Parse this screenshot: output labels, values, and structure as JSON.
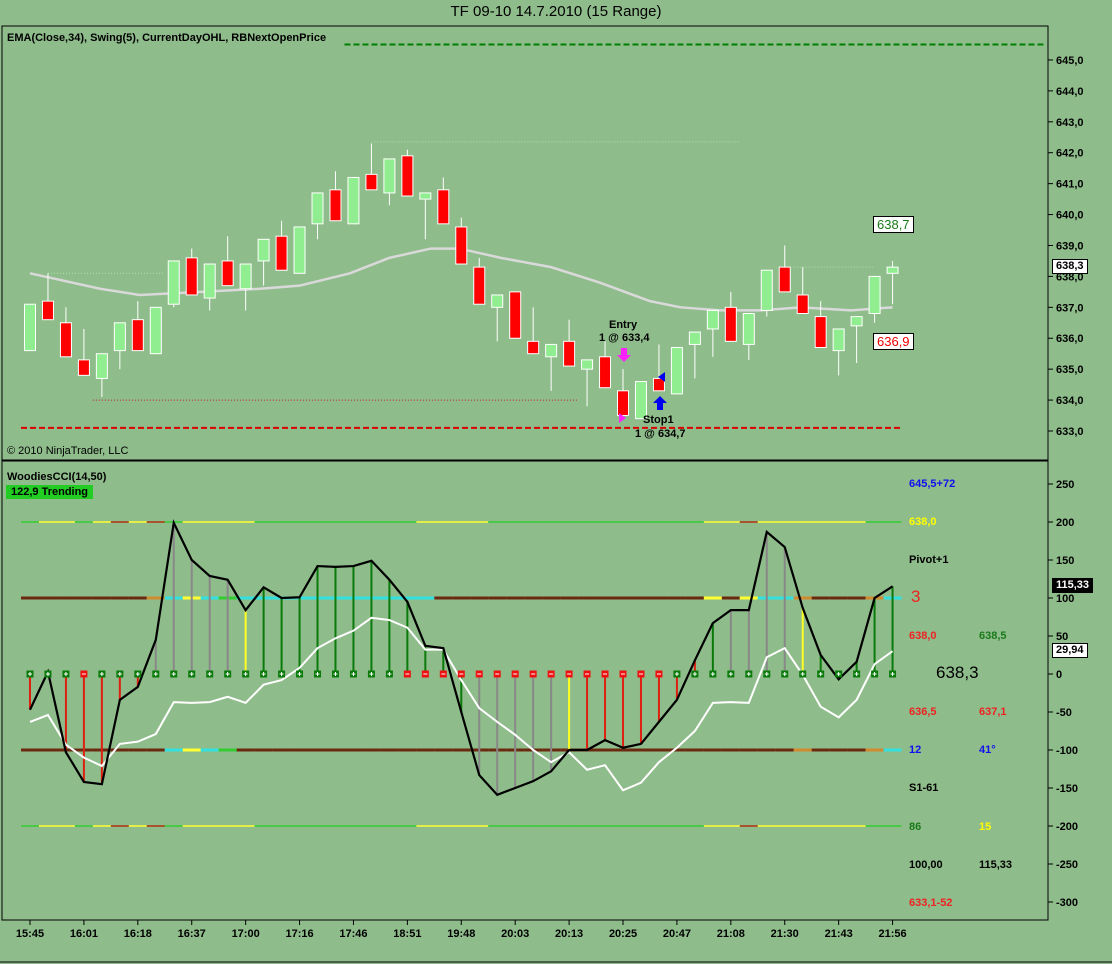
{
  "window": {
    "title": "TF 09-10  14.7.2010 (15 Range)"
  },
  "price_panel": {
    "indicator_label": "EMA(Close,34), Swing(5), CurrentDayOHL, RBNextOpenPrice",
    "copyright": "© 2010 NinjaTrader, LLC",
    "last_price_flag": "638,3",
    "swing_high_box": "638,7",
    "swing_low_box": "636,9",
    "entry": {
      "label": "Entry",
      "detail": "1 @ 633,4"
    },
    "stop": {
      "label": "Stop1",
      "detail": "1 @ 634,7"
    }
  },
  "cci_panel": {
    "indicator_label": "WoodiesCCI(14,50)",
    "status_badge": "122,9 Trending",
    "cci_flag": "115,33",
    "turbo_flag": "29,94",
    "info": {
      "r1": "645,5+72",
      "r2": "638,0",
      "r3": "Pivot+1",
      "r4": "3",
      "r5a": "638,0",
      "r5b": "638,5",
      "r6": "638,3",
      "r7a": "636,5",
      "r7b": "637,1",
      "r8a": "12",
      "r8b": "41°",
      "r9": "S1-61",
      "r10a": "86",
      "r10b": "15",
      "r11a": "100,00",
      "r11b": "115,33",
      "r12": "633,1-52"
    }
  },
  "colors": {
    "background": "#8fbc8b",
    "up": "#90ee90",
    "down": "#ff0000",
    "ema": "#d9d9d9",
    "cci": "#000000",
    "turbo": "#ffffff"
  },
  "chart_data": [
    {
      "type": "candlestick",
      "title": "TF 09-10 14.7.2010 (15 Range)",
      "ylim": [
        632.6,
        645.9
      ],
      "y_ticks": [
        633,
        634,
        635,
        636,
        637,
        638,
        639,
        640,
        641,
        642,
        643,
        644,
        645
      ],
      "y_tick_labels": [
        "633,0",
        "634,0",
        "635,0",
        "636,0",
        "637,0",
        "638,0",
        "639,0",
        "640,0",
        "641,0",
        "642,0",
        "643,0",
        "644,0",
        "645,0"
      ],
      "x_tick_bars": [
        0,
        3,
        6,
        9,
        12,
        15,
        18,
        21,
        24,
        27,
        30,
        33,
        36,
        39,
        42,
        45,
        48
      ],
      "x_tick_labels": [
        "15:45",
        "16:01",
        "16:18",
        "16:37",
        "17:00",
        "17:16",
        "17:46",
        "18:51",
        "19:48",
        "20:03",
        "20:13",
        "20:25",
        "20:47",
        "21:08",
        "21:30",
        "21:43",
        "21:56"
      ],
      "ohlc": [
        [
          635.6,
          637.1,
          635.6,
          637.1
        ],
        [
          637.2,
          638.1,
          636.6,
          636.6
        ],
        [
          636.5,
          637.0,
          635.4,
          635.4
        ],
        [
          635.3,
          636.3,
          634.8,
          634.8
        ],
        [
          634.7,
          635.5,
          634.1,
          635.5
        ],
        [
          635.6,
          636.5,
          635.0,
          636.5
        ],
        [
          636.6,
          637.2,
          635.6,
          635.6
        ],
        [
          635.5,
          637.0,
          635.5,
          637.0
        ],
        [
          637.1,
          638.5,
          637.0,
          638.5
        ],
        [
          638.6,
          638.9,
          637.4,
          637.4
        ],
        [
          637.3,
          638.4,
          636.9,
          638.4
        ],
        [
          638.5,
          639.3,
          637.7,
          637.7
        ],
        [
          637.6,
          638.4,
          636.9,
          638.4
        ],
        [
          638.5,
          639.2,
          637.7,
          639.2
        ],
        [
          639.3,
          639.8,
          638.2,
          638.2
        ],
        [
          638.1,
          639.6,
          638.1,
          639.6
        ],
        [
          639.7,
          640.7,
          639.2,
          640.7
        ],
        [
          640.8,
          641.4,
          639.8,
          639.8
        ],
        [
          639.7,
          641.2,
          639.7,
          641.2
        ],
        [
          641.3,
          642.3,
          640.8,
          640.8
        ],
        [
          640.7,
          641.8,
          640.3,
          641.8
        ],
        [
          641.9,
          642.1,
          640.6,
          640.6
        ],
        [
          640.5,
          640.7,
          639.2,
          640.7
        ],
        [
          640.8,
          641.2,
          639.7,
          639.7
        ],
        [
          639.6,
          639.9,
          638.4,
          638.4
        ],
        [
          638.3,
          638.6,
          637.1,
          637.1
        ],
        [
          637.0,
          637.4,
          635.9,
          637.4
        ],
        [
          637.5,
          637.5,
          636.0,
          636.0
        ],
        [
          635.9,
          637.0,
          635.5,
          635.5
        ],
        [
          635.4,
          635.8,
          634.3,
          635.8
        ],
        [
          635.9,
          636.6,
          635.1,
          635.1
        ],
        [
          635.0,
          635.3,
          633.8,
          635.3
        ],
        [
          635.4,
          635.9,
          634.4,
          634.4
        ],
        [
          634.3,
          635.0,
          633.5,
          633.5
        ],
        [
          633.4,
          634.6,
          633.4,
          634.6
        ],
        [
          634.7,
          635.8,
          634.3,
          634.3
        ],
        [
          634.2,
          635.7,
          634.2,
          635.7
        ],
        [
          635.8,
          636.2,
          634.7,
          636.2
        ],
        [
          636.3,
          636.9,
          635.4,
          636.9
        ],
        [
          637.0,
          637.5,
          635.9,
          635.9
        ],
        [
          635.8,
          636.8,
          635.3,
          636.8
        ],
        [
          636.9,
          638.2,
          636.7,
          638.2
        ],
        [
          638.3,
          639.0,
          637.5,
          637.5
        ],
        [
          637.4,
          638.3,
          636.8,
          636.8
        ],
        [
          636.7,
          637.2,
          635.7,
          635.7
        ],
        [
          635.6,
          636.3,
          634.8,
          636.3
        ],
        [
          636.4,
          636.7,
          635.2,
          636.7
        ],
        [
          636.8,
          638.0,
          636.5,
          638.0
        ],
        [
          638.1,
          638.5,
          637.1,
          638.3
        ]
      ],
      "ema34": [
        [
          0,
          638.1
        ],
        [
          3.9,
          637.6
        ],
        [
          6.1,
          637.4
        ],
        [
          9.5,
          637.5
        ],
        [
          12.8,
          637.6
        ],
        [
          15,
          637.7
        ],
        [
          17.8,
          638.1
        ],
        [
          20,
          638.6
        ],
        [
          22.3,
          638.9
        ],
        [
          23.9,
          638.9
        ],
        [
          26.2,
          638.6
        ],
        [
          29,
          638.3
        ],
        [
          31.7,
          637.8
        ],
        [
          34.5,
          637.2
        ],
        [
          36.2,
          637.0
        ],
        [
          38.4,
          636.9
        ],
        [
          40.6,
          636.9
        ],
        [
          42.9,
          637.0
        ],
        [
          45.7,
          636.9
        ],
        [
          48,
          637.0
        ]
      ],
      "levels": [
        {
          "name": "current-day-high",
          "value": 645.5,
          "from": 17.5,
          "to": 56.5,
          "color": "#008000",
          "style": "dashed"
        },
        {
          "name": "current-day-low",
          "value": 633.1,
          "from": -0.5,
          "to": 48.5,
          "color": "#dd0000",
          "style": "dashed"
        },
        {
          "name": "swing-high-1",
          "value": 638.1,
          "from": 1,
          "to": 7.5,
          "color": "#a8e8a8",
          "style": "dotted"
        },
        {
          "name": "swing-high-2",
          "value": 642.35,
          "from": 19,
          "to": 39.5,
          "color": "#a8e8a8",
          "style": "dotted"
        },
        {
          "name": "swing-low-1",
          "value": 634.0,
          "from": 3.5,
          "to": 30.5,
          "color": "#c02020",
          "style": "dotted"
        },
        {
          "name": "swing-high-3",
          "value": 638.3,
          "from": 42.5,
          "to": 47,
          "color": "#a8e8a8",
          "style": "dotted"
        }
      ]
    },
    {
      "type": "line",
      "title": "WoodiesCCI(14,50)",
      "ylim": [
        -320,
        270
      ],
      "y_ticks": [
        250,
        200,
        150,
        100,
        50,
        0,
        -50,
        -100,
        -150,
        -200,
        -250,
        -300
      ],
      "y_tick_labels": [
        "250",
        "200",
        "150",
        "100",
        "50",
        "0",
        "-50",
        "-100",
        "-150",
        "-200",
        "-250",
        "-300"
      ],
      "series": [
        {
          "name": "CCI",
          "values": [
            -47,
            3,
            -103,
            -142,
            -145,
            -34,
            -17,
            45,
            199,
            150,
            129,
            124,
            84,
            114,
            100,
            101,
            142,
            141,
            142,
            149,
            124,
            95,
            37,
            34,
            -50,
            -133,
            -159,
            -150,
            -141,
            -128,
            -100,
            -100,
            -87,
            -97,
            -92,
            -63,
            -34,
            18,
            67,
            84,
            84,
            187,
            167,
            87,
            25,
            -7,
            16,
            100,
            115.33
          ]
        },
        {
          "name": "TurboCCI",
          "values": [
            -63,
            -54,
            -93,
            -110,
            -121,
            -92,
            -89,
            -79,
            -37,
            -38,
            -37,
            -30,
            -38,
            -14,
            -8,
            8,
            34,
            47,
            57,
            74,
            71,
            61,
            32,
            32,
            -8,
            -45,
            -63,
            -80,
            -100,
            -116,
            -103,
            -126,
            -120,
            -153,
            -143,
            -116,
            -97,
            -75,
            -38,
            -37,
            -38,
            22,
            34,
            -1,
            -43,
            -57,
            -34,
            13,
            29.94
          ]
        }
      ],
      "histogram_colors": "rrrrrrrnnnnnyggggggggggggnnnnnyrrrrrrrgnnnnyggggg",
      "zero_markers": "+++-+++++++++++++++++---------------+++++++++++++",
      "reference_lines": [
        {
          "value": 200,
          "segments": "gyygyryrgyyyygggggggggyyyyggggggggggggyyryyyyyygg"
        },
        {
          "value": 100,
          "segments": "bbbbbbbocycgcccccccccccbbbbbbbbbbbbbbbybycco bbocc"
        },
        {
          "value": -100,
          "segments": "bbbbbbbbcycgbbbbbbbbbbbbbbbbbbbbbbbbbbbbbbbobbbocc"
        },
        {
          "value": -200,
          "segments": "gyygyryrgyyyygggggggggyyyyggggggggggggyyryyyyyygg"
        }
      ]
    }
  ]
}
